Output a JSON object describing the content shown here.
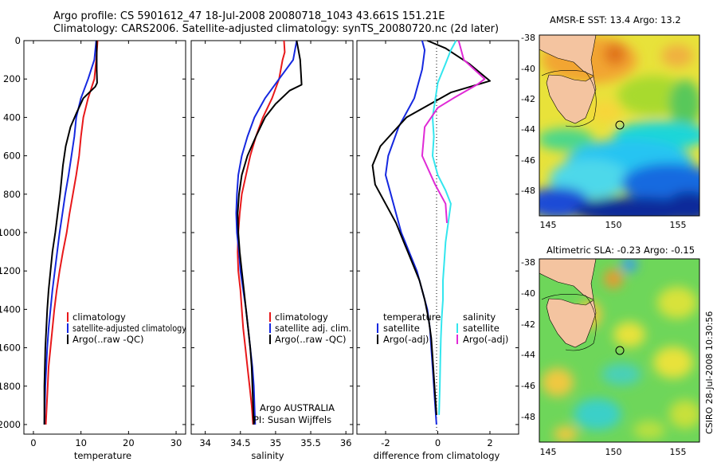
{
  "title_line1": "Argo profile: CS 5901612_47 18-Jul-2008 20080718_1043 43.661S 151.21E",
  "title_line2": "Climatology: CARS2006. Satellite-adjusted climatology: synTS_20080720.nc (2d later)",
  "map1_title": "AMSR-E SST: 13.4 Argo: 13.2",
  "map2_title": "Altimetric SLA: -0.23 Argo: -0.15",
  "side_credit": "CSIRO 28-Jul-2008 10:30:56",
  "colors": {
    "red": "#e8181a",
    "blue": "#1528e0",
    "black": "#000000",
    "cyan": "#33e6ee",
    "magenta": "#e02ad6",
    "deep": "#0b2a9a",
    "land": "#f4c4a0"
  },
  "chart_data": [
    {
      "type": "line",
      "xlabel": "temperature",
      "xlim": [
        -2,
        32
      ],
      "ylim": [
        2050,
        0
      ],
      "xticks": [
        0,
        10,
        20,
        30
      ],
      "yticks": [
        0,
        200,
        400,
        600,
        800,
        1000,
        1200,
        1400,
        1600,
        1800,
        2000
      ],
      "legend": [
        "climatology",
        "satellite-adjusted climatology",
        "Argo(..raw -QC)"
      ],
      "series": [
        {
          "name": "climatology",
          "color": "red",
          "points": [
            [
              13.5,
              0
            ],
            [
              13.2,
              100
            ],
            [
              12.8,
              200
            ],
            [
              11.5,
              300
            ],
            [
              10.5,
              400
            ],
            [
              10,
              500
            ],
            [
              9.6,
              600
            ],
            [
              9,
              700
            ],
            [
              8.3,
              800
            ],
            [
              7.6,
              900
            ],
            [
              7,
              1000
            ],
            [
              6.2,
              1100
            ],
            [
              5.5,
              1200
            ],
            [
              4.9,
              1300
            ],
            [
              4.4,
              1400
            ],
            [
              4,
              1500
            ],
            [
              3.6,
              1600
            ],
            [
              3.2,
              1700
            ],
            [
              3,
              1800
            ],
            [
              2.8,
              1900
            ],
            [
              2.6,
              2000
            ]
          ]
        },
        {
          "name": "satellite-adjusted climatology",
          "color": "blue",
          "points": [
            [
              13.2,
              0
            ],
            [
              12.8,
              100
            ],
            [
              11.5,
              200
            ],
            [
              10,
              300
            ],
            [
              9,
              400
            ],
            [
              8.6,
              500
            ],
            [
              8,
              600
            ],
            [
              7.4,
              700
            ],
            [
              6.7,
              800
            ],
            [
              6.1,
              900
            ],
            [
              5.5,
              1000
            ],
            [
              5,
              1100
            ],
            [
              4.5,
              1200
            ],
            [
              4,
              1300
            ],
            [
              3.6,
              1400
            ],
            [
              3.2,
              1500
            ],
            [
              2.9,
              1600
            ],
            [
              2.7,
              1700
            ],
            [
              2.5,
              1800
            ],
            [
              2.4,
              1900
            ],
            [
              2.3,
              2000
            ]
          ]
        },
        {
          "name": "Argo(..raw -QC)",
          "color": "black",
          "points": [
            [
              13.3,
              0
            ],
            [
              13.3,
              150
            ],
            [
              13.4,
              220
            ],
            [
              13,
              240
            ],
            [
              10.5,
              300
            ],
            [
              9,
              380
            ],
            [
              7.8,
              450
            ],
            [
              6.8,
              550
            ],
            [
              6.2,
              650
            ],
            [
              5.6,
              800
            ],
            [
              5.1,
              900
            ],
            [
              4.6,
              1000
            ],
            [
              4,
              1100
            ],
            [
              3.6,
              1200
            ],
            [
              3.2,
              1300
            ],
            [
              2.9,
              1400
            ],
            [
              2.7,
              1500
            ],
            [
              2.5,
              1600
            ],
            [
              2.4,
              1700
            ],
            [
              2.3,
              1800
            ],
            [
              2.3,
              1900
            ],
            [
              2.3,
              2000
            ]
          ]
        }
      ]
    },
    {
      "type": "line",
      "xlabel": "salinity",
      "xlim": [
        33.8,
        36.1
      ],
      "ylim": [
        2050,
        0
      ],
      "xticks": [
        34,
        34.5,
        35,
        35.5,
        36
      ],
      "xtick_labels": [
        "34",
        "34.5",
        "35",
        "35.5",
        "36"
      ],
      "legend": [
        "climatology",
        "satellite adj. clim.",
        "Argo(..raw -QC)"
      ],
      "annotation": [
        "Argo AUSTRALIA",
        "PI: Susan Wijffels"
      ],
      "series": [
        {
          "name": "climatology",
          "color": "red",
          "points": [
            [
              35.12,
              0
            ],
            [
              35.13,
              60
            ],
            [
              35.1,
              100
            ],
            [
              35.05,
              200
            ],
            [
              34.95,
              300
            ],
            [
              34.82,
              400
            ],
            [
              34.72,
              500
            ],
            [
              34.64,
              600
            ],
            [
              34.58,
              700
            ],
            [
              34.52,
              800
            ],
            [
              34.49,
              900
            ],
            [
              34.47,
              1000
            ],
            [
              34.46,
              1100
            ],
            [
              34.47,
              1200
            ],
            [
              34.5,
              1300
            ],
            [
              34.52,
              1400
            ],
            [
              34.54,
              1500
            ],
            [
              34.57,
              1600
            ],
            [
              34.6,
              1700
            ],
            [
              34.63,
              1800
            ],
            [
              34.66,
              1900
            ],
            [
              34.68,
              2000
            ]
          ]
        },
        {
          "name": "satellite adj. clim.",
          "color": "blue",
          "points": [
            [
              35.3,
              0
            ],
            [
              35.25,
              100
            ],
            [
              35.05,
              200
            ],
            [
              34.85,
              300
            ],
            [
              34.7,
              400
            ],
            [
              34.6,
              500
            ],
            [
              34.52,
              600
            ],
            [
              34.47,
              700
            ],
            [
              34.45,
              800
            ],
            [
              34.44,
              900
            ],
            [
              34.45,
              1000
            ],
            [
              34.48,
              1100
            ],
            [
              34.5,
              1200
            ],
            [
              34.54,
              1300
            ],
            [
              34.58,
              1400
            ],
            [
              34.61,
              1500
            ],
            [
              34.64,
              1600
            ],
            [
              34.67,
              1700
            ],
            [
              34.69,
              1800
            ],
            [
              34.7,
              1900
            ],
            [
              34.71,
              2000
            ]
          ]
        },
        {
          "name": "Argo(..raw -QC)",
          "color": "black",
          "points": [
            [
              35.3,
              0
            ],
            [
              35.35,
              100
            ],
            [
              35.37,
              230
            ],
            [
              35.2,
              260
            ],
            [
              35.0,
              330
            ],
            [
              34.85,
              400
            ],
            [
              34.72,
              500
            ],
            [
              34.6,
              600
            ],
            [
              34.52,
              700
            ],
            [
              34.48,
              800
            ],
            [
              34.46,
              900
            ],
            [
              34.47,
              1000
            ],
            [
              34.49,
              1100
            ],
            [
              34.52,
              1200
            ],
            [
              34.55,
              1300
            ],
            [
              34.58,
              1400
            ],
            [
              34.61,
              1500
            ],
            [
              34.64,
              1600
            ],
            [
              34.66,
              1700
            ],
            [
              34.67,
              1800
            ],
            [
              34.68,
              1900
            ],
            [
              34.69,
              2000
            ]
          ]
        }
      ]
    },
    {
      "type": "line",
      "xlabel": "difference from climatology",
      "xlim": [
        -3.1,
        3.1
      ],
      "ylim": [
        2050,
        0
      ],
      "xticks": [
        -2,
        0,
        2
      ],
      "legend_left": {
        "header": "temperature",
        "items": [
          "satellite",
          "Argo(-adj)"
        ]
      },
      "legend_right": {
        "header": "salinity",
        "items": [
          "satellite",
          "Argo(-adj)"
        ]
      },
      "series": [
        {
          "name": "temperature satellite",
          "color": "blue",
          "points": [
            [
              -0.6,
              0
            ],
            [
              -0.5,
              50
            ],
            [
              -0.6,
              150
            ],
            [
              -0.9,
              300
            ],
            [
              -1.5,
              450
            ],
            [
              -1.9,
              600
            ],
            [
              -2.0,
              700
            ],
            [
              -1.8,
              800
            ],
            [
              -1.6,
              900
            ],
            [
              -1.4,
              1000
            ],
            [
              -1.1,
              1100
            ],
            [
              -0.8,
              1200
            ],
            [
              -0.6,
              1300
            ],
            [
              -0.4,
              1400
            ],
            [
              -0.3,
              1500
            ],
            [
              -0.25,
              1600
            ],
            [
              -0.2,
              1700
            ],
            [
              -0.15,
              1800
            ],
            [
              -0.1,
              1900
            ],
            [
              -0.05,
              2000
            ]
          ]
        },
        {
          "name": "temperature Argo(-adj)",
          "color": "black",
          "points": [
            [
              -0.4,
              0
            ],
            [
              0.3,
              40
            ],
            [
              1.2,
              120
            ],
            [
              2.0,
              210
            ],
            [
              0.5,
              270
            ],
            [
              -1.2,
              400
            ],
            [
              -2.2,
              550
            ],
            [
              -2.5,
              650
            ],
            [
              -2.4,
              750
            ],
            [
              -2.0,
              850
            ],
            [
              -1.6,
              950
            ],
            [
              -1.3,
              1050
            ],
            [
              -1.0,
              1150
            ],
            [
              -0.7,
              1250
            ],
            [
              -0.5,
              1350
            ],
            [
              -0.35,
              1450
            ],
            [
              -0.25,
              1550
            ],
            [
              -0.2,
              1650
            ],
            [
              -0.15,
              1750
            ],
            [
              -0.1,
              1850
            ],
            [
              -0.05,
              1950
            ]
          ]
        },
        {
          "name": "salinity satellite",
          "color": "cyan",
          "points": [
            [
              0.7,
              0
            ],
            [
              0.5,
              50
            ],
            [
              0.3,
              120
            ],
            [
              0.0,
              220
            ],
            [
              -0.2,
              400
            ],
            [
              -0.15,
              500
            ],
            [
              -0.2,
              600
            ],
            [
              0.0,
              700
            ],
            [
              0.3,
              780
            ],
            [
              0.5,
              850
            ],
            [
              0.4,
              950
            ],
            [
              0.3,
              1050
            ],
            [
              0.25,
              1150
            ],
            [
              0.2,
              1250
            ],
            [
              0.2,
              1350
            ],
            [
              0.15,
              1450
            ],
            [
              0.12,
              1550
            ],
            [
              0.1,
              1650
            ],
            [
              0.08,
              1800
            ],
            [
              0.05,
              1950
            ]
          ]
        },
        {
          "name": "salinity Argo(-adj)",
          "color": "magenta",
          "points": [
            [
              0.8,
              0
            ],
            [
              1.0,
              100
            ],
            [
              1.8,
              200
            ],
            [
              1.5,
              230
            ],
            [
              0.6,
              300
            ],
            [
              0.0,
              350
            ],
            [
              -0.5,
              450
            ],
            [
              -0.6,
              600
            ],
            [
              -0.1,
              750
            ],
            [
              0.3,
              850
            ],
            [
              0.35,
              950
            ]
          ]
        }
      ]
    }
  ],
  "maps": {
    "lon_ticks": [
      "145",
      "150",
      "155"
    ],
    "lat_ticks": [
      "-38",
      "-40",
      "-42",
      "-44",
      "-46",
      "-48"
    ]
  }
}
